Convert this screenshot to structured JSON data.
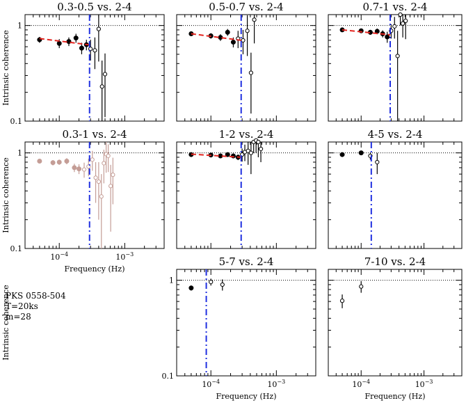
{
  "figure": {
    "info": {
      "source": "PKS 0558-504",
      "exposure": "T=20ks",
      "bins": "m=28"
    }
  },
  "chart_data": [
    {
      "type": "scatter",
      "title": "0.3-0.5 vs. 2-4",
      "ylabel": "Intrinsic coherence",
      "xlabel": "",
      "xscale": "log",
      "yscale": "log",
      "xlim": [
        3e-05,
        0.004
      ],
      "ylim": [
        0.1,
        1.3
      ],
      "yticks": [
        {
          "v": 0.1,
          "label": "0.1"
        },
        {
          "v": 1,
          "label": "1"
        }
      ],
      "xticks": [],
      "filled": {
        "x": [
          5e-05,
          0.0001,
          0.00014,
          0.00018,
          0.00022,
          0.00026
        ],
        "y": [
          0.71,
          0.65,
          0.68,
          0.74,
          0.58,
          0.63
        ],
        "err": [
          0.05,
          0.07,
          0.07,
          0.08,
          0.08,
          0.08
        ]
      },
      "open": {
        "x": [
          0.0003,
          0.00035,
          0.0004,
          0.00045,
          0.0005
        ],
        "y": [
          0.57,
          0.55,
          0.92,
          0.23,
          0.31
        ],
        "err": [
          0.14,
          0.2,
          0.5,
          0.2,
          0.2
        ]
      },
      "fit_line": {
        "x": [
          5e-05,
          0.00028
        ],
        "y": [
          0.73,
          0.63
        ]
      },
      "reference_line": 1,
      "vline": 0.00029
    },
    {
      "type": "scatter",
      "title": "0.5-0.7 vs. 2-4",
      "ylabel": "",
      "xlabel": "",
      "xscale": "log",
      "yscale": "log",
      "xlim": [
        3e-05,
        0.004
      ],
      "ylim": [
        0.1,
        1.3
      ],
      "yticks": [],
      "xticks": [],
      "filled": {
        "x": [
          5e-05,
          0.0001,
          0.00014,
          0.00018,
          0.00022
        ],
        "y": [
          0.82,
          0.78,
          0.75,
          0.85,
          0.67
        ],
        "err": [
          0.04,
          0.05,
          0.06,
          0.07,
          0.08
        ]
      },
      "open": {
        "x": [
          0.00026,
          0.00031,
          0.00036,
          0.00041,
          0.00046
        ],
        "y": [
          0.73,
          0.7,
          0.88,
          0.32,
          1.15
        ],
        "err": [
          0.15,
          0.2,
          0.4,
          0.2,
          0.5
        ]
      },
      "fit_line": {
        "x": [
          5e-05,
          0.00029
        ],
        "y": [
          0.82,
          0.7
        ]
      },
      "reference_line": 1,
      "vline": 0.00029
    },
    {
      "type": "scatter",
      "title": "0.7-1 vs. 2-4",
      "ylabel": "",
      "xlabel": "",
      "xscale": "log",
      "yscale": "log",
      "xlim": [
        3e-05,
        0.004
      ],
      "ylim": [
        0.1,
        1.3
      ],
      "yticks": [],
      "xticks": [],
      "filled": {
        "x": [
          5e-05,
          0.0001,
          0.00014,
          0.00018,
          0.00022,
          0.00026
        ],
        "y": [
          0.9,
          0.88,
          0.85,
          0.87,
          0.82,
          0.76
        ],
        "err": [
          0.03,
          0.04,
          0.05,
          0.06,
          0.07,
          0.1
        ]
      },
      "open": {
        "x": [
          0.0003,
          0.00034,
          0.00038,
          0.00042,
          0.00046,
          0.00051
        ],
        "y": [
          0.88,
          0.98,
          0.48,
          1.3,
          1.05,
          1.12
        ],
        "err": [
          0.15,
          0.25,
          0.4,
          0.3,
          0.3,
          0.4
        ]
      },
      "fit_line": {
        "x": [
          5e-05,
          0.00029
        ],
        "y": [
          0.9,
          0.8
        ]
      },
      "reference_line": 1,
      "vline": 0.00029
    },
    {
      "type": "scatter",
      "title": "0.3-1 vs. 2-4",
      "ylabel": "Intrinsic coherence",
      "xlabel": "Frequency (Hz)",
      "xscale": "log",
      "yscale": "log",
      "xlim": [
        3e-05,
        0.004
      ],
      "ylim": [
        0.1,
        1.3
      ],
      "yticks": [
        {
          "v": 0.1,
          "label": "0.1"
        },
        {
          "v": 1,
          "label": "1"
        }
      ],
      "xticks": [
        {
          "v": 0.0001,
          "base": "10",
          "exp": "−4"
        },
        {
          "v": 0.001,
          "base": "10",
          "exp": "−3"
        }
      ],
      "marker_color": "#c49d96",
      "filled": {
        "x": [
          5e-05,
          8e-05,
          0.0001,
          0.00013,
          0.00017,
          0.0002
        ],
        "y": [
          0.82,
          0.79,
          0.8,
          0.82,
          0.7,
          0.68
        ],
        "err": [
          0.04,
          0.05,
          0.05,
          0.06,
          0.07,
          0.08
        ]
      },
      "open": {
        "x": [
          0.00024,
          0.00028,
          0.00032,
          0.00036,
          0.0004,
          0.00044,
          0.00048,
          0.00052,
          0.00056,
          0.00061,
          0.00066
        ],
        "y": [
          0.67,
          0.72,
          0.85,
          0.55,
          0.5,
          0.35,
          0.78,
          0.97,
          0.93,
          0.45,
          0.59
        ],
        "err": [
          0.12,
          0.15,
          0.2,
          0.25,
          0.3,
          0.25,
          0.3,
          0.35,
          0.3,
          0.3,
          0.3
        ]
      },
      "fit_line": null,
      "reference_line": 1,
      "vline": 0.00029
    },
    {
      "type": "scatter",
      "title": "1-2 vs. 2-4",
      "ylabel": "",
      "xlabel": "",
      "xscale": "log",
      "yscale": "log",
      "xlim": [
        3e-05,
        0.004
      ],
      "ylim": [
        0.1,
        1.3
      ],
      "yticks": [],
      "xticks": [],
      "filled": {
        "x": [
          5e-05,
          0.0001,
          0.00014,
          0.00018,
          0.00022,
          0.00026
        ],
        "y": [
          0.96,
          0.95,
          0.93,
          0.96,
          0.93,
          0.9
        ],
        "err": [
          0.02,
          0.02,
          0.03,
          0.04,
          0.05,
          0.06
        ]
      },
      "open": {
        "x": [
          0.0003,
          0.00033,
          0.00037,
          0.00041,
          0.00045,
          0.00049,
          0.00053,
          0.00058
        ],
        "y": [
          0.96,
          1.02,
          1.05,
          1.0,
          1.3,
          1.35,
          1.3,
          1.1
        ],
        "err": [
          0.15,
          0.2,
          0.3,
          0.4,
          0.3,
          0.35,
          0.4,
          0.3
        ]
      },
      "fit_line": {
        "x": [
          5e-05,
          0.00029
        ],
        "y": [
          0.97,
          0.9
        ]
      },
      "reference_line": 1,
      "vline": 0.00029
    },
    {
      "type": "scatter",
      "title": "4-5 vs. 2-4",
      "ylabel": "",
      "xlabel": "",
      "xscale": "log",
      "yscale": "log",
      "xlim": [
        3e-05,
        0.004
      ],
      "ylim": [
        0.1,
        1.3
      ],
      "yticks": [],
      "xticks": [],
      "filled": {
        "x": [
          5e-05,
          0.0001
        ],
        "y": [
          0.96,
          1.0
        ],
        "err": [
          0.03,
          0.03
        ]
      },
      "open": {
        "x": [
          0.00014,
          0.00018
        ],
        "y": [
          0.93,
          0.8
        ],
        "err": [
          0.08,
          0.2
        ]
      },
      "fit_line": null,
      "reference_line": 1,
      "vline": 0.000145
    },
    {
      "type": "scatter",
      "title": "5-7 vs. 2-4",
      "ylabel": "Intrinsic coherence",
      "xlabel": "Frequency (Hz)",
      "xscale": "log",
      "yscale": "log",
      "xlim": [
        3e-05,
        0.004
      ],
      "ylim": [
        0.1,
        1.3
      ],
      "yticks": [
        {
          "v": 0.1,
          "label": "0.1"
        },
        {
          "v": 1,
          "label": "1"
        }
      ],
      "xticks": [
        {
          "v": 0.0001,
          "base": "10",
          "exp": "−4"
        },
        {
          "v": 0.001,
          "base": "10",
          "exp": "−3"
        }
      ],
      "filled": {
        "x": [
          5e-05
        ],
        "y": [
          0.83
        ],
        "err": [
          0.05
        ]
      },
      "open": {
        "x": [
          0.0001,
          0.00015
        ],
        "y": [
          0.96,
          0.9
        ],
        "err": [
          0.08,
          0.12
        ]
      },
      "fit_line": null,
      "reference_line": 1,
      "vline": 8.5e-05
    },
    {
      "type": "scatter",
      "title": "7-10 vs. 2-4",
      "ylabel": "",
      "xlabel": "Frequency (Hz)",
      "xscale": "log",
      "yscale": "log",
      "xlim": [
        3e-05,
        0.004
      ],
      "ylim": [
        0.1,
        1.3
      ],
      "yticks": [],
      "xticks": [
        {
          "v": 0.0001,
          "base": "10",
          "exp": "−4"
        },
        {
          "v": 0.001,
          "base": "10",
          "exp": "−3"
        }
      ],
      "filled": {
        "x": [],
        "y": [],
        "err": []
      },
      "open": {
        "x": [
          5e-05,
          0.0001
        ],
        "y": [
          0.61,
          0.86
        ],
        "err": [
          0.1,
          0.12
        ]
      },
      "fit_line": null,
      "reference_line": 1,
      "vline": null
    }
  ]
}
